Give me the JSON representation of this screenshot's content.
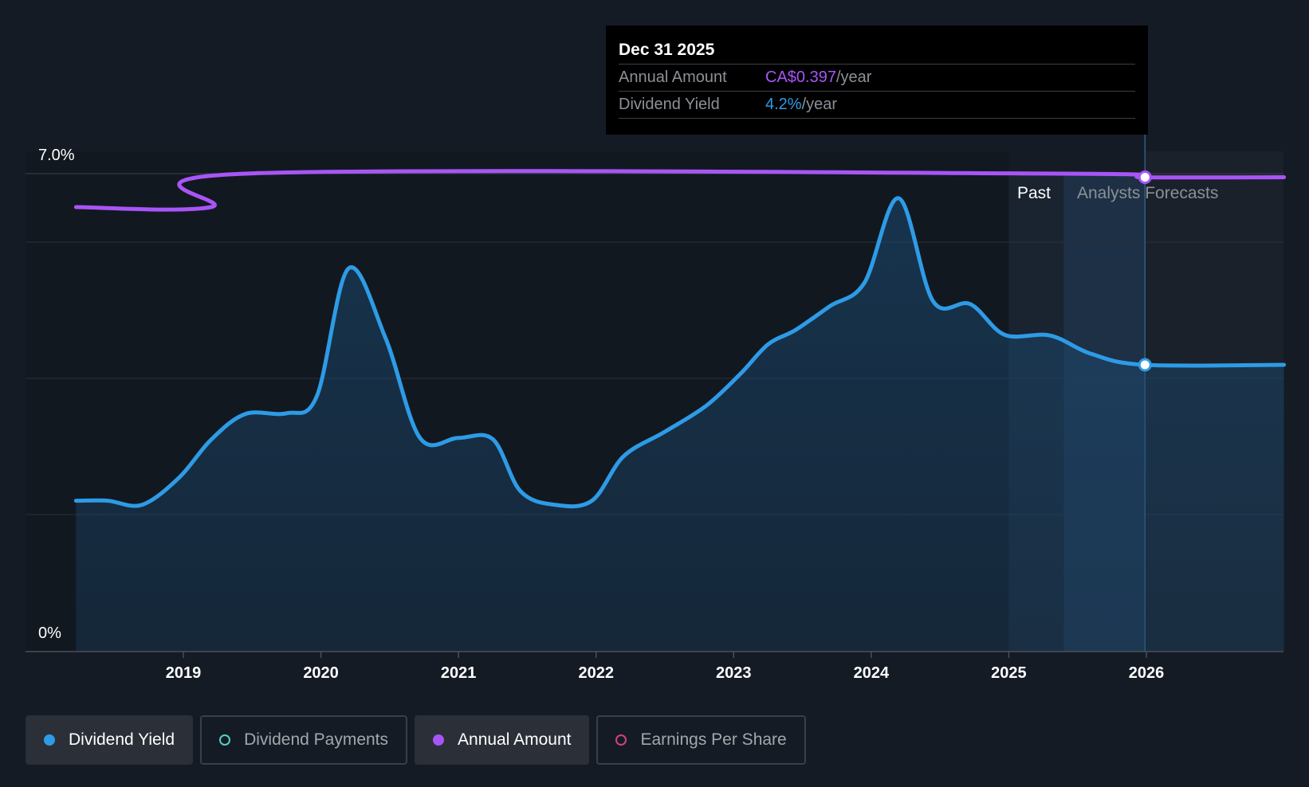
{
  "chart_data": {
    "type": "line",
    "y_axis": {
      "top_label": "7.0%",
      "bottom_label": "0%",
      "range": [
        0,
        7.0
      ]
    },
    "x_axis": {
      "ticks": [
        "2019",
        "2020",
        "2021",
        "2022",
        "2023",
        "2024",
        "2025",
        "2026"
      ],
      "range": [
        2018.15,
        2027.0
      ]
    },
    "regions": {
      "past_label": "Past",
      "forecast_label": "Analysts Forecasts"
    },
    "series": [
      {
        "name": "Dividend Yield",
        "color": "#2e9be6",
        "unit": "%",
        "points": [
          [
            2018.22,
            2.21
          ],
          [
            2018.45,
            2.21
          ],
          [
            2018.7,
            2.15
          ],
          [
            2018.97,
            2.55
          ],
          [
            2019.2,
            3.1
          ],
          [
            2019.45,
            3.48
          ],
          [
            2019.75,
            3.49
          ],
          [
            2019.97,
            3.74
          ],
          [
            2020.2,
            5.61
          ],
          [
            2020.47,
            4.59
          ],
          [
            2020.72,
            3.13
          ],
          [
            2021.0,
            3.13
          ],
          [
            2021.25,
            3.11
          ],
          [
            2021.45,
            2.35
          ],
          [
            2021.7,
            2.15
          ],
          [
            2021.97,
            2.21
          ],
          [
            2022.2,
            2.86
          ],
          [
            2022.5,
            3.22
          ],
          [
            2022.8,
            3.6
          ],
          [
            2023.05,
            4.07
          ],
          [
            2023.25,
            4.5
          ],
          [
            2023.45,
            4.71
          ],
          [
            2023.7,
            5.06
          ],
          [
            2023.95,
            5.4
          ],
          [
            2024.2,
            6.64
          ],
          [
            2024.45,
            5.13
          ],
          [
            2024.72,
            5.09
          ],
          [
            2024.97,
            4.64
          ],
          [
            2025.3,
            4.63
          ],
          [
            2025.6,
            4.36
          ],
          [
            2025.99,
            4.2
          ],
          [
            2027.0,
            4.2
          ]
        ]
      },
      {
        "name": "Annual Amount",
        "color": "#a855f7",
        "unit": "CA$/year",
        "points": [
          [
            2018.22,
            0.372
          ],
          [
            2019.2,
            0.372
          ],
          [
            2019.45,
            0.4
          ],
          [
            2025.4,
            0.4
          ],
          [
            2025.99,
            0.397
          ],
          [
            2027.0,
            0.397
          ]
        ]
      }
    ],
    "highlight": {
      "x": 2025.99,
      "yield": 4.2,
      "annual_amount": 0.397
    }
  },
  "tooltip": {
    "date": "Dec 31 2025",
    "rows": [
      {
        "label": "Annual Amount",
        "value": "CA$0.397",
        "suffix": "/year"
      },
      {
        "label": "Dividend Yield",
        "value": "4.2%",
        "suffix": "/year"
      }
    ]
  },
  "legend": [
    {
      "label": "Dividend Yield",
      "color": "#2e9be6",
      "active": true,
      "filled": true
    },
    {
      "label": "Dividend Payments",
      "color": "#4fd1c5",
      "active": false,
      "filled": false
    },
    {
      "label": "Annual Amount",
      "color": "#a855f7",
      "active": true,
      "filled": true
    },
    {
      "label": "Earnings Per Share",
      "color": "#d0427e",
      "active": false,
      "filled": false
    }
  ]
}
